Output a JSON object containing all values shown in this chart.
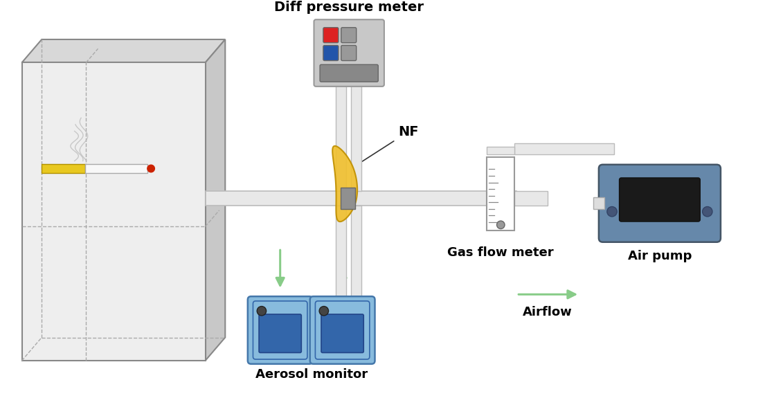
{
  "bg_color": "#ffffff",
  "arrow_color": "#88cc88",
  "pipe_color": "#e8e8e8",
  "pipe_edge": "#bbbbbb",
  "box_front": "#eeeeee",
  "box_top": "#d8d8d8",
  "box_right": "#c8c8c8",
  "box_edge": "#888888",
  "dpm_color": "#c8c8c8",
  "dpm_edge": "#999999",
  "gfm_color": "#ffffff",
  "air_pump_color": "#6688aa",
  "air_pump_edge": "#445566",
  "aerosol_body": "#88bbdd",
  "aerosol_screen": "#3366aa",
  "aerosol_edge": "#4477aa",
  "nf_color": "#f0c030",
  "nf_edge": "#c09000",
  "holder_color": "#909090",
  "title_fontsize": 14,
  "label_fontsize": 13,
  "labels": {
    "diff_pressure": "Diff pressure meter",
    "nf": "NF",
    "gas_flow": "Gas flow meter",
    "air_pump": "Air pump",
    "aerosol": "Aerosol monitor",
    "airflow": "Airflow"
  }
}
